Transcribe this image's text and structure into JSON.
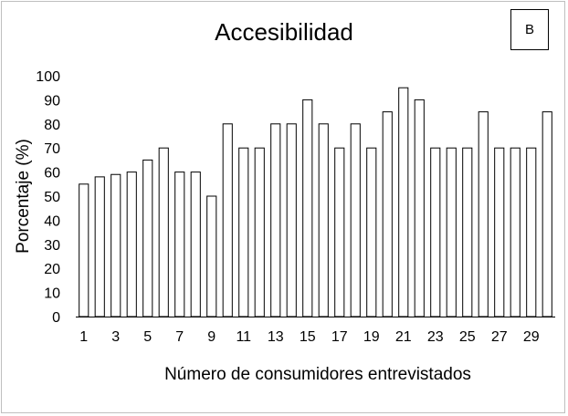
{
  "chart_data": {
    "type": "bar",
    "title": "Accesibilidad",
    "panel_label": "B",
    "xlabel": "Número de consumidores entrevistados",
    "ylabel": "Porcentaje (%)",
    "ylim": [
      0,
      100
    ],
    "yticks": [
      0,
      10,
      20,
      30,
      40,
      50,
      60,
      70,
      80,
      90,
      100
    ],
    "x_tick_labels": [
      "1",
      "3",
      "5",
      "7",
      "9",
      "11",
      "13",
      "15",
      "17",
      "19",
      "21",
      "23",
      "25",
      "27",
      "29"
    ],
    "categories": [
      "1",
      "2",
      "3",
      "4",
      "5",
      "6",
      "7",
      "8",
      "9",
      "10",
      "11",
      "12",
      "13",
      "14",
      "15",
      "16",
      "17",
      "18",
      "19",
      "20",
      "21",
      "22",
      "23",
      "24",
      "25",
      "26",
      "27",
      "28",
      "29",
      "30"
    ],
    "values": [
      55,
      58,
      59,
      60,
      65,
      70,
      60,
      60,
      50,
      80,
      70,
      70,
      80,
      80,
      90,
      80,
      70,
      80,
      70,
      85,
      95,
      90,
      70,
      70,
      70,
      85,
      70,
      70,
      70,
      85
    ],
    "bar_fill": "#ffffff",
    "bar_stroke": "#000000",
    "grid": false,
    "legend": "none"
  }
}
